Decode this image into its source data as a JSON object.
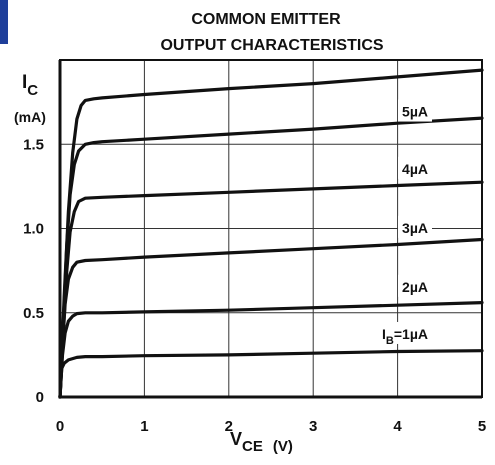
{
  "chart_data": {
    "type": "line",
    "title": "COMMON EMITTER",
    "subtitle": "OUTPUT CHARACTERISTICS",
    "ylabel_main": "I",
    "ylabel_sub": "C",
    "yunit": "(mA)",
    "xlabel_main": "V",
    "xlabel_sub": "CE",
    "xunit": "(V)",
    "xlim": [
      0,
      5
    ],
    "ylim": [
      0,
      2
    ],
    "grid": true,
    "x_ticks": [
      {
        "value": 0,
        "label": "0"
      },
      {
        "value": 1,
        "label": "1"
      },
      {
        "value": 2,
        "label": "2"
      },
      {
        "value": 3,
        "label": "3"
      },
      {
        "value": 4,
        "label": "4"
      },
      {
        "value": 5,
        "label": "5"
      }
    ],
    "y_ticks": [
      {
        "value": 0,
        "label": "0"
      },
      {
        "value": 0.5,
        "label": "0.5"
      },
      {
        "value": 1.0,
        "label": "1.0"
      },
      {
        "value": 1.5,
        "label": "1.5"
      }
    ],
    "series": [
      {
        "label_main": "I",
        "label_sub": "B",
        "label_rest": "=1µA",
        "x": [
          0,
          0.02,
          0.05,
          0.1,
          0.2,
          0.3,
          0.5,
          1,
          2,
          3,
          4,
          5
        ],
        "y": [
          0,
          0.17,
          0.2,
          0.22,
          0.235,
          0.24,
          0.24,
          0.245,
          0.25,
          0.26,
          0.27,
          0.275
        ]
      },
      {
        "label_main": "2µA",
        "label_sub": "",
        "label_rest": "",
        "x": [
          0,
          0.03,
          0.06,
          0.1,
          0.15,
          0.2,
          0.3,
          0.5,
          1,
          2,
          3,
          4,
          5
        ],
        "y": [
          0,
          0.25,
          0.38,
          0.45,
          0.48,
          0.495,
          0.5,
          0.5,
          0.505,
          0.515,
          0.53,
          0.545,
          0.56
        ]
      },
      {
        "label_main": "3µA",
        "label_sub": "",
        "label_rest": "",
        "x": [
          0,
          0.03,
          0.06,
          0.1,
          0.15,
          0.2,
          0.3,
          0.5,
          1,
          2,
          3,
          4,
          5
        ],
        "y": [
          0,
          0.3,
          0.55,
          0.7,
          0.77,
          0.8,
          0.81,
          0.815,
          0.83,
          0.855,
          0.88,
          0.905,
          0.935
        ]
      },
      {
        "label_main": "4µA",
        "label_sub": "",
        "label_rest": "",
        "x": [
          0,
          0.04,
          0.08,
          0.12,
          0.17,
          0.22,
          0.3,
          0.5,
          1,
          2,
          3,
          4,
          5
        ],
        "y": [
          0,
          0.4,
          0.75,
          0.98,
          1.1,
          1.16,
          1.18,
          1.185,
          1.195,
          1.215,
          1.235,
          1.255,
          1.275
        ]
      },
      {
        "label_main": "5µA",
        "label_sub": "",
        "label_rest": "",
        "x": [
          0,
          0.04,
          0.08,
          0.12,
          0.17,
          0.22,
          0.3,
          0.4,
          0.5,
          1,
          2,
          3,
          4,
          5
        ],
        "y": [
          0,
          0.45,
          0.9,
          1.2,
          1.38,
          1.46,
          1.5,
          1.51,
          1.515,
          1.53,
          1.56,
          1.59,
          1.625,
          1.655
        ]
      },
      {
        "label_main": "",
        "label_sub": "",
        "label_rest": "",
        "x": [
          0,
          0.05,
          0.1,
          0.15,
          0.2,
          0.25,
          0.3,
          0.4,
          0.5,
          1,
          2,
          3,
          4,
          5
        ],
        "y": [
          0,
          0.6,
          1.1,
          1.45,
          1.65,
          1.73,
          1.76,
          1.77,
          1.775,
          1.795,
          1.83,
          1.86,
          1.9,
          1.94
        ]
      }
    ]
  }
}
